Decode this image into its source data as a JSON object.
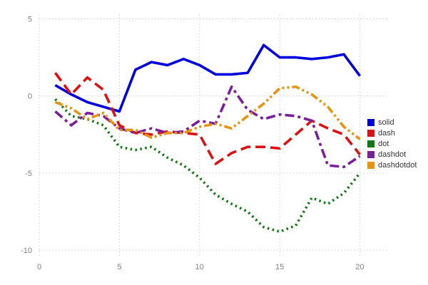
{
  "chart_data": {
    "type": "line",
    "title": "",
    "xlabel": "",
    "ylabel": "",
    "xlim": [
      0,
      21.8
    ],
    "ylim": [
      -10.5,
      5.3
    ],
    "xticks": [
      0,
      5,
      10,
      15,
      20
    ],
    "yticks": [
      -10,
      -5,
      0,
      5
    ],
    "grid": true,
    "grid_color": "#cccccc",
    "tick_label_color": "#808080",
    "legend_position": "right",
    "x": [
      1,
      2,
      3,
      4,
      5,
      6,
      7,
      8,
      9,
      10,
      11,
      12,
      13,
      14,
      15,
      16,
      17,
      18,
      19,
      20
    ],
    "series": [
      {
        "name": "solid",
        "color": "#0000dd",
        "line_style": "solid",
        "values": [
          0.7,
          0.1,
          -0.4,
          -0.7,
          -1.0,
          1.7,
          2.2,
          2.0,
          2.4,
          2.0,
          1.4,
          1.4,
          1.5,
          3.3,
          2.5,
          2.5,
          2.4,
          2.5,
          2.7,
          1.3
        ]
      },
      {
        "name": "dash",
        "color": "#dd1111",
        "line_style": "dash",
        "values": [
          1.5,
          0.1,
          1.2,
          0.4,
          -1.9,
          -2.4,
          -2.5,
          -2.3,
          -2.4,
          -2.5,
          -4.4,
          -3.7,
          -3.3,
          -3.3,
          -3.4,
          -2.5,
          -1.6,
          -2.1,
          -2.5,
          -3.8
        ]
      },
      {
        "name": "dot",
        "color": "#117711",
        "line_style": "dot",
        "values": [
          -0.2,
          -1.3,
          -1.5,
          -1.9,
          -3.3,
          -3.5,
          -3.3,
          -4.0,
          -4.5,
          -5.3,
          -6.4,
          -7.0,
          -7.5,
          -8.5,
          -8.8,
          -8.4,
          -6.6,
          -7.0,
          -6.3,
          -5.0
        ]
      },
      {
        "name": "dashdot",
        "color": "#7a1f9c",
        "line_style": "dashdot",
        "values": [
          -1.0,
          -1.9,
          -1.1,
          -1.3,
          -2.1,
          -2.4,
          -2.1,
          -2.4,
          -2.3,
          -1.6,
          -1.8,
          0.6,
          -0.9,
          -1.5,
          -1.2,
          -1.3,
          -1.6,
          -4.5,
          -4.6,
          -3.9
        ]
      },
      {
        "name": "dashdotdot",
        "color": "#e6930f",
        "line_style": "dashdotdot",
        "values": [
          -0.4,
          -0.8,
          -1.5,
          -1.1,
          -2.2,
          -2.2,
          -2.7,
          -2.4,
          -2.4,
          -2.0,
          -1.8,
          -2.1,
          -1.3,
          -0.5,
          0.5,
          0.6,
          0.1,
          -0.7,
          -2.0,
          -2.8
        ]
      }
    ]
  }
}
